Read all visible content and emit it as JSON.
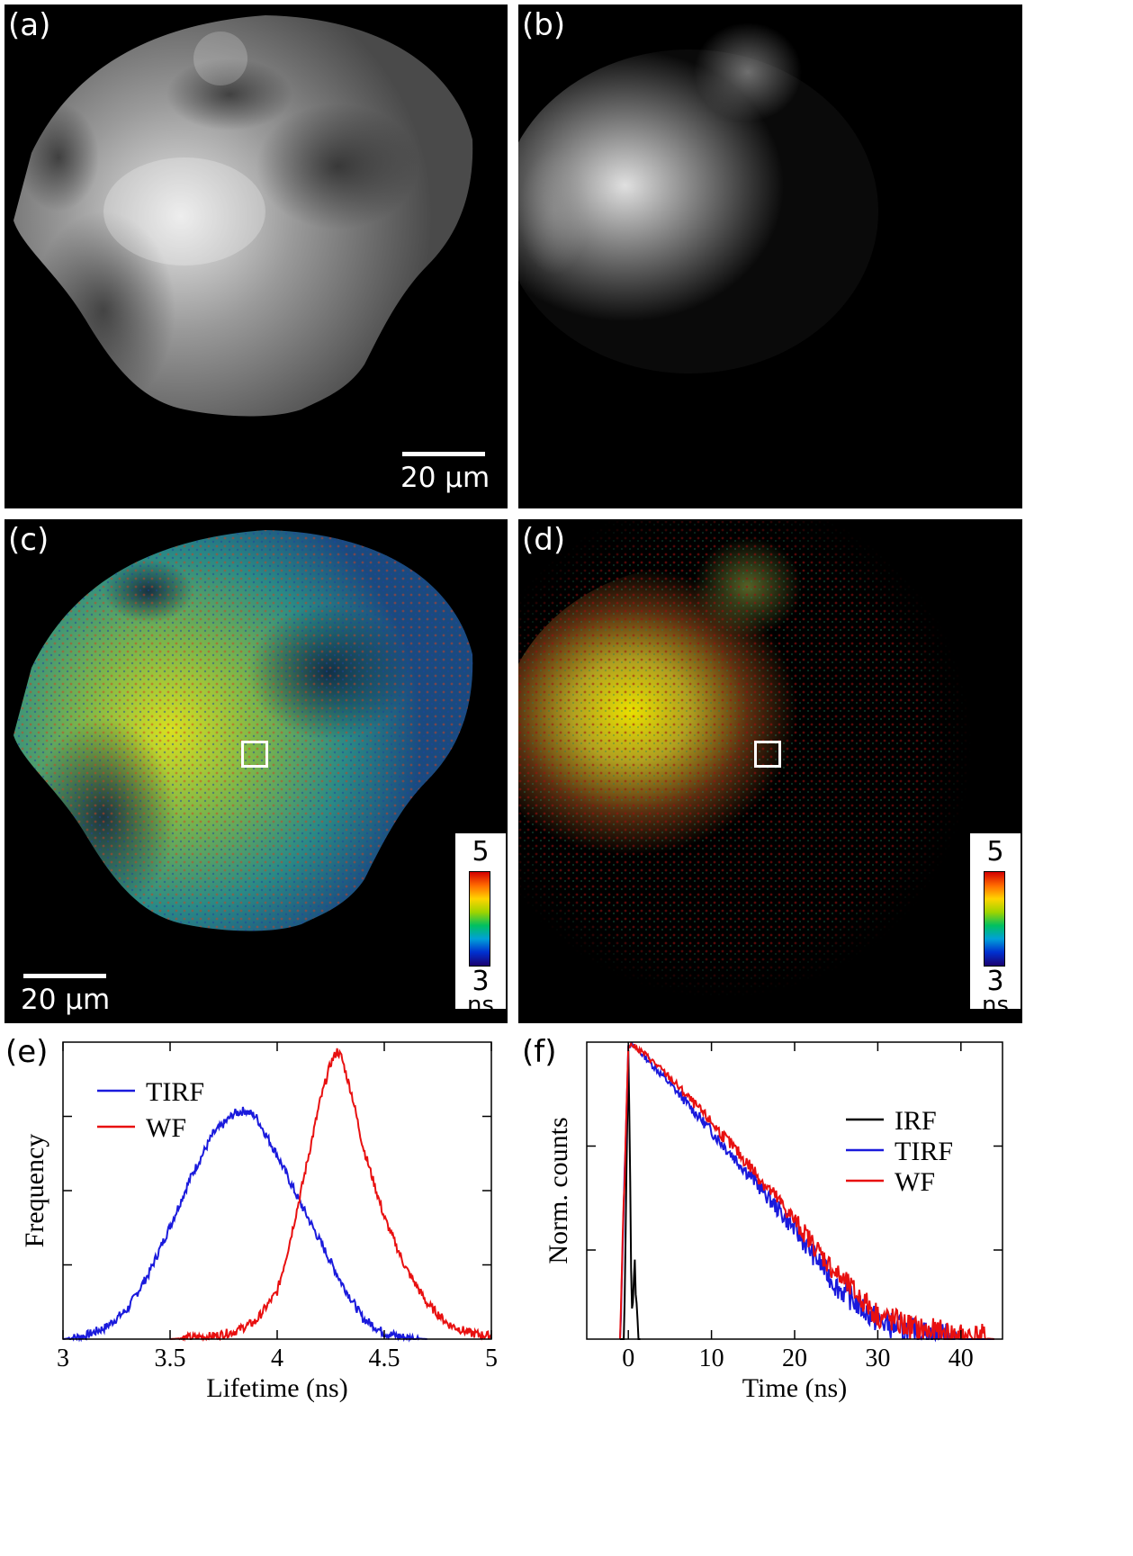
{
  "panels": {
    "a": {
      "label": "(a)",
      "scalebar": "20 μm"
    },
    "b": {
      "label": "(b)"
    },
    "c": {
      "label": "(c)",
      "scalebar": "20 μm",
      "colorbar": {
        "top": "5",
        "bottom": "3",
        "unit": "ns"
      }
    },
    "d": {
      "label": "(d)",
      "colorbar": {
        "top": "5",
        "bottom": "3",
        "unit": "ns"
      }
    },
    "e": {
      "label": "(e)"
    },
    "f": {
      "label": "(f)"
    }
  },
  "chart_data": [
    {
      "type": "line",
      "panel": "(e)",
      "xlabel": "Lifetime (ns)",
      "ylabel": "Frequency",
      "xlim": [
        3,
        5
      ],
      "xticks": [
        "3",
        "3.5",
        "4",
        "4.5",
        "5"
      ],
      "legend": "top-left",
      "series": [
        {
          "name": "TIRF",
          "color": "#1a1adc",
          "x": [
            3.0,
            3.1,
            3.2,
            3.3,
            3.4,
            3.5,
            3.6,
            3.7,
            3.8,
            3.85,
            3.9,
            4.0,
            4.1,
            4.2,
            4.3,
            4.4,
            4.5,
            4.6,
            4.7
          ],
          "y": [
            0.0,
            0.01,
            0.04,
            0.1,
            0.22,
            0.38,
            0.55,
            0.69,
            0.76,
            0.77,
            0.75,
            0.62,
            0.47,
            0.33,
            0.19,
            0.07,
            0.02,
            0.005,
            0.0
          ]
        },
        {
          "name": "WF",
          "color": "#e81010",
          "x": [
            3.5,
            3.6,
            3.7,
            3.8,
            3.9,
            4.0,
            4.05,
            4.1,
            4.15,
            4.2,
            4.25,
            4.28,
            4.3,
            4.35,
            4.4,
            4.5,
            4.6,
            4.7,
            4.8,
            4.9,
            5.0
          ],
          "y": [
            0.0,
            0.005,
            0.01,
            0.025,
            0.06,
            0.16,
            0.3,
            0.46,
            0.63,
            0.8,
            0.93,
            0.97,
            0.95,
            0.82,
            0.65,
            0.41,
            0.24,
            0.12,
            0.05,
            0.02,
            0.01
          ]
        }
      ]
    },
    {
      "type": "line",
      "panel": "(f)",
      "xlabel": "Time (ns)",
      "ylabel": "Norm. counts",
      "xlim": [
        -5,
        45
      ],
      "xticks": [
        "0",
        "10",
        "20",
        "30",
        "40"
      ],
      "yscale": "log",
      "legend": "right",
      "series": [
        {
          "name": "IRF",
          "color": "#000000",
          "x": [
            -1,
            -0.5,
            0,
            0.2,
            0.4,
            0.6,
            0.8,
            1.0,
            1.2,
            1.5
          ],
          "y": [
            0.0,
            0.0,
            0.98,
            0.6,
            0.1,
            0.15,
            0.25,
            0.1,
            0.0,
            0.0
          ]
        },
        {
          "name": "TIRF",
          "color": "#1a1adc",
          "x": [
            -1,
            0,
            0.5,
            2,
            5,
            10,
            15,
            20,
            25,
            30,
            35,
            40,
            44
          ],
          "y": [
            0.0,
            0.99,
            0.99,
            0.95,
            0.86,
            0.7,
            0.54,
            0.37,
            0.18,
            0.06,
            0.02,
            0.0,
            0.0
          ]
        },
        {
          "name": "WF",
          "color": "#e81010",
          "x": [
            -1,
            0,
            0.5,
            2,
            5,
            10,
            15,
            20,
            25,
            30,
            35,
            40,
            44
          ],
          "y": [
            0.0,
            0.99,
            0.99,
            0.96,
            0.88,
            0.73,
            0.57,
            0.4,
            0.22,
            0.08,
            0.03,
            0.01,
            0.0
          ]
        }
      ]
    }
  ]
}
